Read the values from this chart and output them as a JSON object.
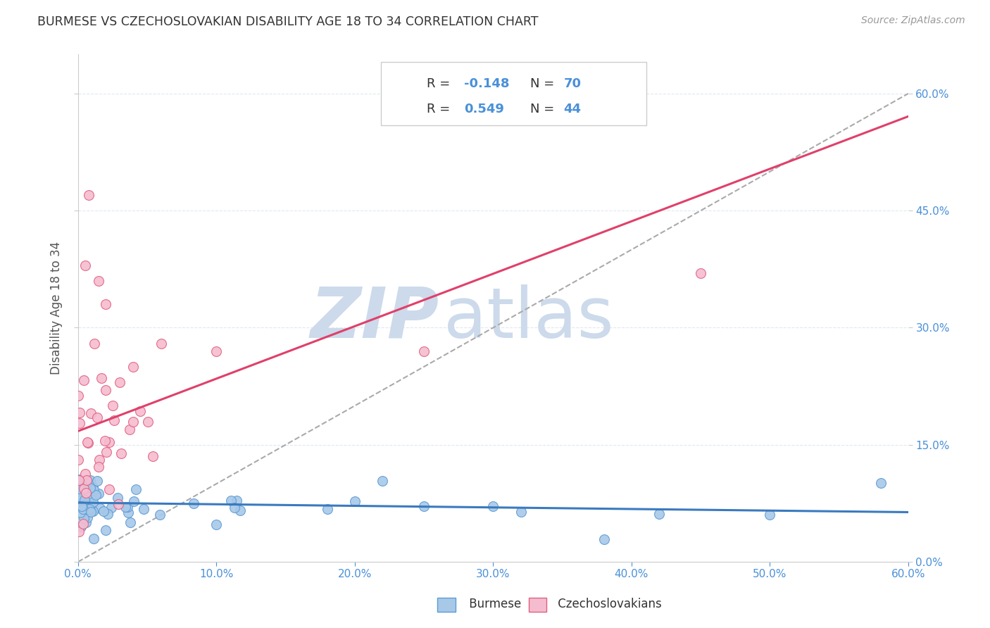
{
  "title": "BURMESE VS CZECHOSLOVAKIAN DISABILITY AGE 18 TO 34 CORRELATION CHART",
  "source": "Source: ZipAtlas.com",
  "ylabel": "Disability Age 18 to 34",
  "legend_label1": "Burmese",
  "legend_label2": "Czechoslovakians",
  "R1": -0.148,
  "N1": 70,
  "R2": 0.549,
  "N2": 44,
  "xlim": [
    0.0,
    0.6
  ],
  "ylim": [
    0.0,
    0.65
  ],
  "yticks": [
    0.0,
    0.15,
    0.3,
    0.45,
    0.6
  ],
  "color_burmese": "#a8c8e8",
  "color_czech": "#f5bcd0",
  "edge_burmese": "#5b9bd5",
  "edge_czech": "#e06080",
  "line_burmese": "#3a7abf",
  "line_czech": "#e0406a",
  "watermark_zip_color": "#ccdaeb",
  "watermark_atlas_color": "#ccdaeb",
  "grid_color": "#e0e8f0",
  "background_color": "#ffffff",
  "title_color": "#333333",
  "source_color": "#999999",
  "tick_color": "#4a90d9",
  "label_color": "#555555"
}
